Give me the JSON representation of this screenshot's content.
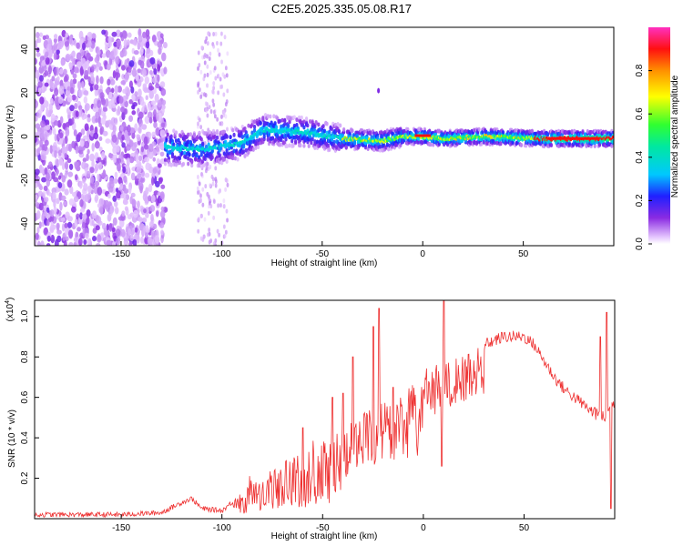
{
  "title": "C2E5.2025.335.05.08.R17",
  "chart_data": [
    {
      "type": "heatmap",
      "xlabel": "Height of straight line (km)",
      "ylabel": "Frequency (Hz)",
      "xlim": [
        -193,
        95
      ],
      "ylim": [
        -50,
        50
      ],
      "x_ticks": [
        -150,
        -100,
        -50,
        0,
        50
      ],
      "y_ticks": [
        -40,
        -20,
        0,
        20,
        40
      ],
      "colorbar": {
        "label": "Normalized spectral amplitude",
        "range": [
          0,
          1
        ],
        "ticks": [
          0.0,
          0.2,
          0.4,
          0.6,
          0.8
        ],
        "tick_labels": [
          "0.0",
          "0.2",
          "0.4",
          "0.6",
          "0.8"
        ]
      },
      "regions": [
        {
          "description": "scattered noise",
          "x_range": [
            -193,
            -128
          ],
          "freq_range": [
            -50,
            48
          ],
          "amplitude": 0.15
        },
        {
          "description": "weak noise",
          "x_range": [
            -112,
            -97
          ],
          "freq_range": [
            -50,
            48
          ],
          "amplitude": 0.08
        },
        {
          "description": "main signal band",
          "x_range": [
            -128,
            95
          ],
          "center_freq": [
            [
              -128,
              -5
            ],
            [
              -110,
              -6
            ],
            [
              -90,
              -3
            ],
            [
              -80,
              3
            ],
            [
              -60,
              2
            ],
            [
              -40,
              -1
            ],
            [
              -20,
              -2
            ],
            [
              -10,
              0
            ],
            [
              0,
              0
            ],
            [
              10,
              -1
            ],
            [
              30,
              0
            ],
            [
              60,
              -1
            ],
            [
              90,
              -1
            ]
          ]
        }
      ]
    },
    {
      "type": "line",
      "series": [
        {
          "name": "SNR",
          "color": "#ee3030"
        }
      ],
      "xlabel": "Height of straight line (km)",
      "ylabel": "SNR (10 * v/v)",
      "exponent_label": "(x10",
      "exponent_value": "4",
      "exponent_suffix": ")",
      "xlim": [
        -193,
        95
      ],
      "ylim": [
        0,
        1.08
      ],
      "x_ticks": [
        -150,
        -100,
        -50,
        0,
        50
      ],
      "y_ticks": [
        0.2,
        0.4,
        0.6,
        0.8,
        1.0
      ],
      "y_tick_labels": [
        "0.2",
        "0.4",
        "0.6",
        "0.8",
        "1.0"
      ],
      "envelope": [
        [
          -193,
          0.02
        ],
        [
          -150,
          0.02
        ],
        [
          -130,
          0.03
        ],
        [
          -120,
          0.08
        ],
        [
          -115,
          0.1
        ],
        [
          -110,
          0.05
        ],
        [
          -100,
          0.04
        ],
        [
          -95,
          0.08
        ],
        [
          -90,
          0.14
        ],
        [
          -80,
          0.22
        ],
        [
          -70,
          0.28
        ],
        [
          -60,
          0.33
        ],
        [
          -50,
          0.38
        ],
        [
          -40,
          0.45
        ],
        [
          -30,
          0.52
        ],
        [
          -20,
          0.58
        ],
        [
          -10,
          0.64
        ],
        [
          0,
          0.7
        ],
        [
          10,
          0.76
        ],
        [
          20,
          0.82
        ],
        [
          30,
          0.86
        ],
        [
          40,
          0.9
        ],
        [
          50,
          0.9
        ],
        [
          55,
          0.86
        ],
        [
          60,
          0.78
        ],
        [
          65,
          0.7
        ],
        [
          70,
          0.64
        ],
        [
          80,
          0.56
        ],
        [
          85,
          0.52
        ],
        [
          90,
          0.5
        ],
        [
          95,
          0.58
        ]
      ],
      "spikes": [
        [
          -22,
          1.04
        ],
        [
          -25,
          0.95
        ],
        [
          -15,
          0.65
        ],
        [
          10,
          1.1
        ],
        [
          9,
          0.26
        ],
        [
          12,
          0.6
        ],
        [
          -35,
          0.8
        ],
        [
          -40,
          0.62
        ],
        [
          -45,
          0.6
        ],
        [
          -60,
          0.45
        ],
        [
          88,
          0.9
        ],
        [
          91,
          1.02
        ],
        [
          93,
          0.05
        ],
        [
          85,
          0.55
        ]
      ]
    }
  ]
}
